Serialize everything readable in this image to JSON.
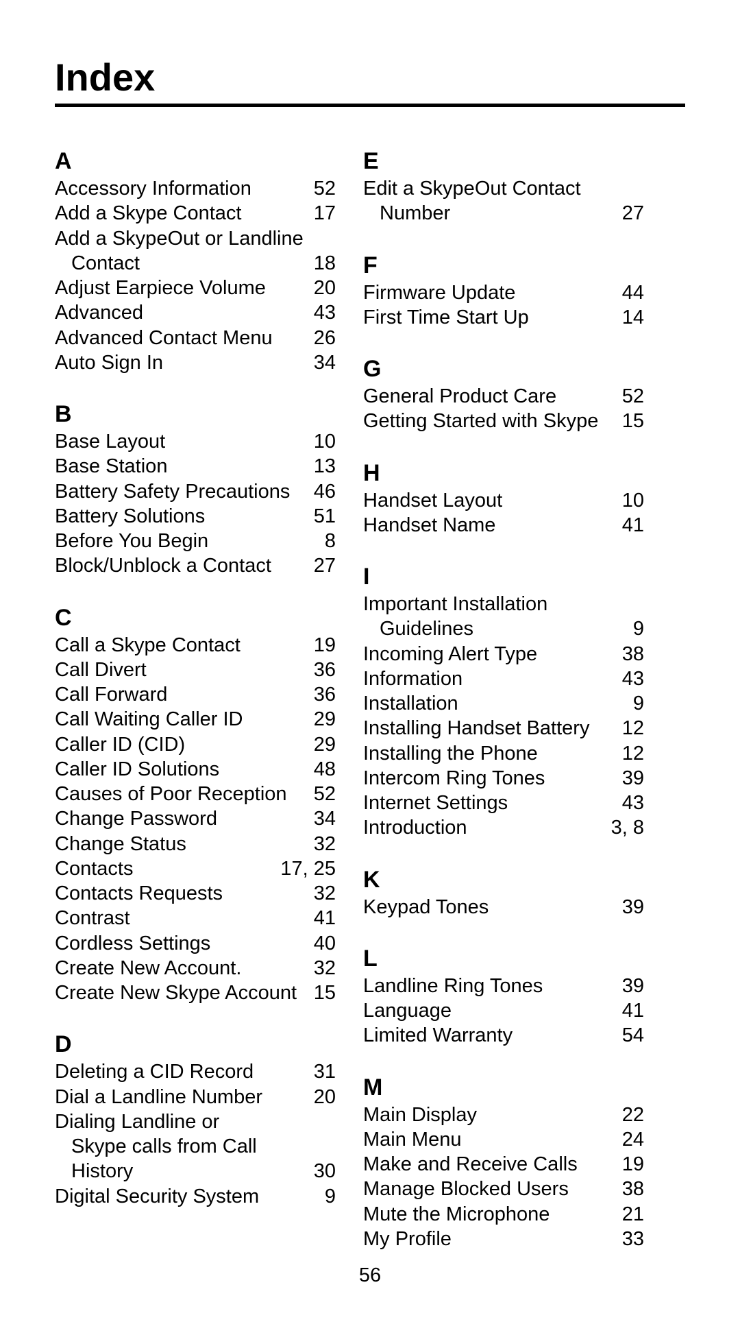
{
  "title": "Index",
  "page_number": "56",
  "columns": [
    [
      {
        "letter": "A",
        "entries": [
          {
            "term": "Accessory Information",
            "pages": "52"
          },
          {
            "term": "Add a Skype Contact",
            "pages": "17"
          },
          {
            "term": "Add a SkypeOut or Landline",
            "pages": ""
          },
          {
            "term": "Contact",
            "pages": "18",
            "sub": true
          },
          {
            "term": "Adjust Earpiece Volume",
            "pages": "20"
          },
          {
            "term": "Advanced",
            "pages": "43"
          },
          {
            "term": "Advanced Contact Menu",
            "pages": "26"
          },
          {
            "term": "Auto Sign In",
            "pages": "34"
          }
        ]
      },
      {
        "letter": "B",
        "entries": [
          {
            "term": "Base Layout",
            "pages": "10"
          },
          {
            "term": "Base Station",
            "pages": "13"
          },
          {
            "term": "Battery Safety Precautions",
            "pages": "46"
          },
          {
            "term": "Battery Solutions",
            "pages": "51"
          },
          {
            "term": "Before You Begin",
            "pages": "8"
          },
          {
            "term": "Block/Unblock a Contact",
            "pages": "27"
          }
        ]
      },
      {
        "letter": "C",
        "entries": [
          {
            "term": "Call a Skype Contact",
            "pages": "19"
          },
          {
            "term": "Call Divert",
            "pages": "36"
          },
          {
            "term": "Call Forward",
            "pages": "36"
          },
          {
            "term": "Call Waiting Caller ID",
            "pages": "29"
          },
          {
            "term": "Caller ID (CID)",
            "pages": "29"
          },
          {
            "term": "Caller ID Solutions",
            "pages": "48"
          },
          {
            "term": "Causes of Poor Reception",
            "pages": "52"
          },
          {
            "term": "Change Password",
            "pages": "34"
          },
          {
            "term": "Change Status",
            "pages": "32"
          },
          {
            "term": "Contacts",
            "pages": "17, 25"
          },
          {
            "term": "Contacts Requests",
            "pages": "32"
          },
          {
            "term": "Contrast",
            "pages": "41"
          },
          {
            "term": "Cordless Settings",
            "pages": "40"
          },
          {
            "term": "Create New Account.",
            "pages": "32"
          },
          {
            "term": "Create New Skype Account",
            "pages": "15"
          }
        ]
      },
      {
        "letter": "D",
        "entries": [
          {
            "term": "Deleting a CID Record",
            "pages": "31"
          },
          {
            "term": "Dial a Landline Number",
            "pages": "20"
          },
          {
            "term": "Dialing Landline or",
            "pages": ""
          },
          {
            "term": "Skype calls from Call History",
            "pages": "30",
            "sub": true,
            "tight": true
          },
          {
            "term": "Digital Security System",
            "pages": "9"
          }
        ]
      }
    ],
    [
      {
        "letter": "E",
        "entries": [
          {
            "term": "Edit a SkypeOut Contact",
            "pages": ""
          },
          {
            "term": "Number",
            "pages": "27",
            "sub": true
          }
        ]
      },
      {
        "letter": "F",
        "entries": [
          {
            "term": "Firmware Update",
            "pages": "44"
          },
          {
            "term": "First Time Start Up",
            "pages": "14"
          }
        ]
      },
      {
        "letter": "G",
        "entries": [
          {
            "term": "General Product Care",
            "pages": "52"
          },
          {
            "term": "Getting Started with Skype",
            "pages": "15"
          }
        ]
      },
      {
        "letter": "H",
        "entries": [
          {
            "term": "Handset Layout",
            "pages": "10"
          },
          {
            "term": "Handset Name",
            "pages": "41"
          }
        ]
      },
      {
        "letter": "I",
        "entries": [
          {
            "term": "Important Installation",
            "pages": ""
          },
          {
            "term": "Guidelines",
            "pages": "9",
            "sub": true
          },
          {
            "term": "Incoming Alert Type",
            "pages": "38"
          },
          {
            "term": "Information",
            "pages": "43"
          },
          {
            "term": "Installation",
            "pages": "9"
          },
          {
            "term": "Installing Handset Battery",
            "pages": "12"
          },
          {
            "term": "Installing the Phone",
            "pages": "12"
          },
          {
            "term": "Intercom Ring Tones",
            "pages": "39"
          },
          {
            "term": "Internet Settings",
            "pages": "43"
          },
          {
            "term": "Introduction",
            "pages": "3, 8"
          }
        ]
      },
      {
        "letter": "K",
        "entries": [
          {
            "term": "Keypad Tones",
            "pages": "39"
          }
        ]
      },
      {
        "letter": "L",
        "entries": [
          {
            "term": "Landline Ring Tones",
            "pages": "39"
          },
          {
            "term": "Language",
            "pages": "41"
          },
          {
            "term": "Limited Warranty",
            "pages": "54"
          }
        ]
      },
      {
        "letter": "M",
        "entries": [
          {
            "term": "Main Display",
            "pages": "22"
          },
          {
            "term": "Main Menu",
            "pages": "24"
          },
          {
            "term": "Make and Receive Calls",
            "pages": "19"
          },
          {
            "term": "Manage Blocked Users",
            "pages": "38"
          },
          {
            "term": "Mute the Microphone",
            "pages": "21"
          },
          {
            "term": "My Profile",
            "pages": "33"
          }
        ]
      }
    ]
  ]
}
